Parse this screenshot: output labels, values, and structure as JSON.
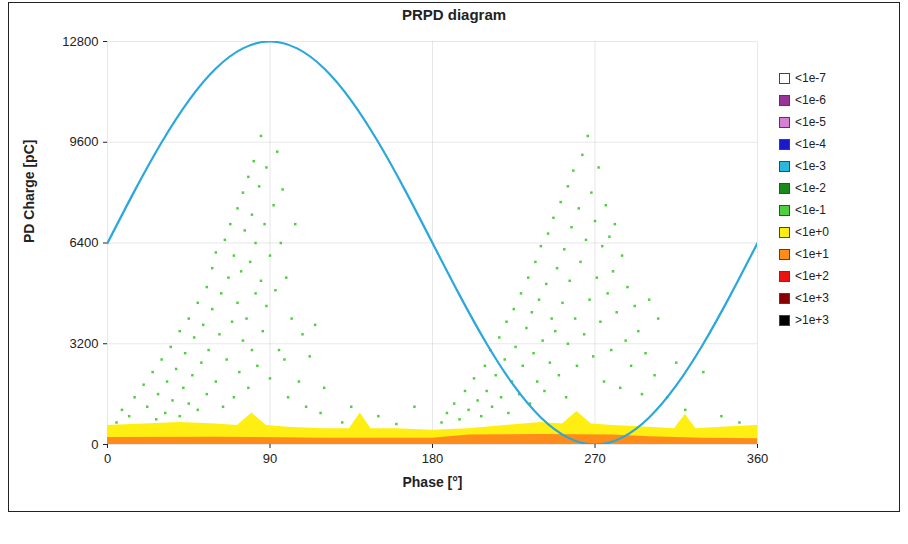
{
  "chart_data": {
    "type": "scatter",
    "title": "PRPD diagram",
    "x_label": "Phase [°]",
    "y_label": "PD Charge [pC]",
    "xlim": [
      0,
      360
    ],
    "xticks": [
      0,
      90,
      180,
      270,
      360
    ],
    "ylim": [
      0,
      12800
    ],
    "yticks": [
      0,
      3200,
      6400,
      9600,
      12800
    ],
    "grid": true,
    "legend": "right",
    "series": [
      {
        "name": "<1e-7",
        "color": "#ffffff",
        "type": "scatter",
        "marker": "square",
        "x": [],
        "values": []
      },
      {
        "name": "<1e-6",
        "color": "#993399",
        "type": "scatter",
        "marker": "square",
        "x": [],
        "values": []
      },
      {
        "name": "<1e-5",
        "color": "#d67fd6",
        "type": "scatter",
        "marker": "square",
        "x": [],
        "values": []
      },
      {
        "name": "<1e-4",
        "color": "#1a1acc",
        "type": "scatter",
        "marker": "square",
        "x": [],
        "values": []
      },
      {
        "name": "<1e-3",
        "color": "#2ab8dc",
        "type": "scatter",
        "marker": "square",
        "x": [],
        "values": []
      },
      {
        "name": "<1e-2",
        "color": "#1a8a1a",
        "type": "scatter",
        "marker": "square",
        "x": [],
        "values": []
      },
      {
        "name": "<1e-1",
        "color": "#4fce3f",
        "type": "scatter",
        "marker": "square",
        "x": [
          5,
          8,
          12,
          15,
          18,
          20,
          22,
          25,
          27,
          28,
          30,
          32,
          33,
          35,
          36,
          38,
          40,
          40,
          42,
          43,
          45,
          45,
          47,
          48,
          50,
          50,
          52,
          53,
          55,
          55,
          56,
          58,
          58,
          60,
          60,
          62,
          63,
          64,
          65,
          66,
          67,
          68,
          69,
          70,
          70,
          72,
          72,
          73,
          74,
          75,
          75,
          76,
          77,
          78,
          78,
          79,
          80,
          80,
          81,
          82,
          82,
          83,
          84,
          85,
          85,
          86,
          87,
          88,
          88,
          90,
          90,
          92,
          93,
          94,
          95,
          96,
          97,
          98,
          99,
          100,
          102,
          104,
          106,
          108,
          110,
          112,
          115,
          118,
          120,
          130,
          135,
          140,
          150,
          160,
          170,
          10,
          30,
          65,
          95,
          125,
          185,
          188,
          192,
          195,
          198,
          200,
          203,
          205,
          207,
          209,
          210,
          212,
          213,
          215,
          217,
          218,
          220,
          221,
          222,
          224,
          225,
          226,
          228,
          229,
          230,
          232,
          233,
          234,
          235,
          236,
          237,
          238,
          239,
          240,
          241,
          242,
          243,
          244,
          245,
          246,
          247,
          248,
          249,
          250,
          251,
          252,
          253,
          254,
          255,
          255,
          256,
          257,
          258,
          259,
          260,
          261,
          262,
          263,
          264,
          265,
          266,
          267,
          268,
          269,
          270,
          271,
          272,
          273,
          274,
          275,
          276,
          277,
          278,
          279,
          280,
          281,
          282,
          284,
          285,
          287,
          288,
          290,
          292,
          294,
          296,
          298,
          300,
          303,
          305,
          310,
          315,
          320,
          330,
          340,
          350,
          190,
          230,
          265,
          300,
          345
        ],
        "values": [
          700,
          1100,
          900,
          1500,
          600,
          1900,
          1200,
          2300,
          800,
          1600,
          2700,
          1000,
          2000,
          3100,
          1400,
          2400,
          3600,
          900,
          1800,
          2900,
          4000,
          1300,
          2200,
          3400,
          4500,
          1100,
          2600,
          3800,
          5000,
          1600,
          3000,
          4300,
          5600,
          2000,
          6100,
          3500,
          4800,
          1200,
          6500,
          2700,
          5300,
          7000,
          3900,
          1500,
          6000,
          4500,
          7500,
          2300,
          5500,
          8000,
          3300,
          6800,
          4000,
          8500,
          1800,
          5800,
          7300,
          3000,
          9000,
          4800,
          6400,
          2500,
          8200,
          5200,
          9800,
          3600,
          7000,
          4400,
          8800,
          6000,
          2100,
          7600,
          4900,
          9300,
          3000,
          6400,
          8100,
          2700,
          5300,
          1500,
          4000,
          7000,
          2000,
          3500,
          1200,
          2800,
          3800,
          1000,
          1800,
          700,
          1200,
          400,
          900,
          650,
          1200,
          350,
          450,
          500,
          550,
          400,
          700,
          1000,
          1300,
          800,
          1700,
          1100,
          2100,
          1400,
          900,
          2500,
          1700,
          3000,
          1200,
          2200,
          3400,
          1500,
          2700,
          3900,
          1000,
          2000,
          4300,
          3100,
          1600,
          4800,
          2500,
          3700,
          5300,
          1300,
          4200,
          2900,
          5800,
          2000,
          4600,
          6300,
          3300,
          1700,
          5100,
          6700,
          2600,
          4000,
          7200,
          3600,
          5600,
          2200,
          7700,
          4500,
          6200,
          1500,
          8200,
          3200,
          5200,
          6900,
          8700,
          4000,
          2500,
          7500,
          5800,
          9200,
          3500,
          6500,
          9800,
          4600,
          8000,
          2800,
          7100,
          5300,
          8800,
          3900,
          6300,
          2000,
          7600,
          4800,
          6600,
          3000,
          5500,
          7000,
          4200,
          1800,
          6000,
          3300,
          5000,
          2500,
          4400,
          3600,
          1600,
          2900,
          4600,
          2200,
          4000,
          1500,
          2600,
          1100,
          2300,
          900,
          700,
          450,
          500,
          550,
          480,
          420
        ]
      },
      {
        "name": "<1e+0",
        "color": "#ffee11",
        "type": "area",
        "x": [
          0,
          20,
          40,
          60,
          72,
          80,
          88,
          100,
          120,
          134,
          140,
          146,
          160,
          180,
          200,
          220,
          240,
          252,
          260,
          268,
          280,
          300,
          314,
          320,
          326,
          340,
          360
        ],
        "values": [
          600,
          650,
          700,
          650,
          600,
          1000,
          600,
          550,
          500,
          500,
          1000,
          500,
          500,
          450,
          500,
          600,
          700,
          650,
          1050,
          650,
          600,
          550,
          500,
          950,
          500,
          550,
          600
        ]
      },
      {
        "name": "<1e+1",
        "color": "#ff8c1a",
        "type": "area",
        "x": [
          0,
          60,
          120,
          180,
          200,
          240,
          280,
          300,
          330,
          360
        ],
        "values": [
          220,
          230,
          200,
          200,
          300,
          320,
          300,
          250,
          200,
          180
        ]
      },
      {
        "name": "<1e+2",
        "color": "#ee1111",
        "type": "scatter",
        "marker": "square",
        "x": [],
        "values": []
      },
      {
        "name": "<1e+3",
        "color": "#880000",
        "type": "scatter",
        "marker": "square",
        "x": [],
        "values": []
      },
      {
        "name": ">1e+3",
        "color": "#000000",
        "type": "scatter",
        "marker": "square",
        "x": [],
        "values": []
      },
      {
        "color": "#2aa7dc",
        "type": "line",
        "x": [
          0,
          15,
          30,
          45,
          60,
          75,
          90,
          105,
          120,
          135,
          150,
          165,
          180,
          195,
          210,
          225,
          240,
          255,
          270,
          285,
          300,
          315,
          330,
          345,
          360
        ],
        "values": [
          6400,
          8056,
          9600,
          10925,
          11943,
          12582,
          12800,
          12582,
          11943,
          10925,
          9600,
          8056,
          6400,
          4744,
          3200,
          1875,
          857,
          218,
          0,
          218,
          857,
          1875,
          3200,
          4744,
          6400
        ]
      }
    ]
  }
}
